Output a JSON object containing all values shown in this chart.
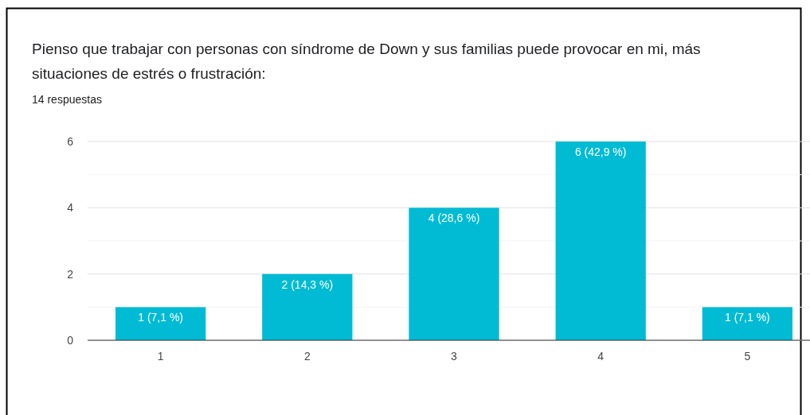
{
  "chart_data": {
    "type": "bar",
    "title": "Pienso que trabajar con personas con síndrome de Down y sus familias puede provocar en mi, más situaciones de estrés o frustración:",
    "subtitle": "14 respuestas",
    "categories": [
      "1",
      "2",
      "3",
      "4",
      "5"
    ],
    "values": [
      1,
      2,
      4,
      6,
      1
    ],
    "value_labels": [
      "1 (7,1 %)",
      "2 (14,3 %)",
      "4 (28,6 %)",
      "6 (42,9 %)",
      "1 (7,1 %)"
    ],
    "color": "#01bbd4",
    "ylim": [
      0,
      6
    ],
    "yticks": [
      0,
      {
        "value": 1,
        "label": null
      },
      2,
      {
        "value": 3,
        "label": null
      },
      4,
      {
        "value": 5,
        "label": null
      },
      6
    ],
    "grid": "y"
  }
}
